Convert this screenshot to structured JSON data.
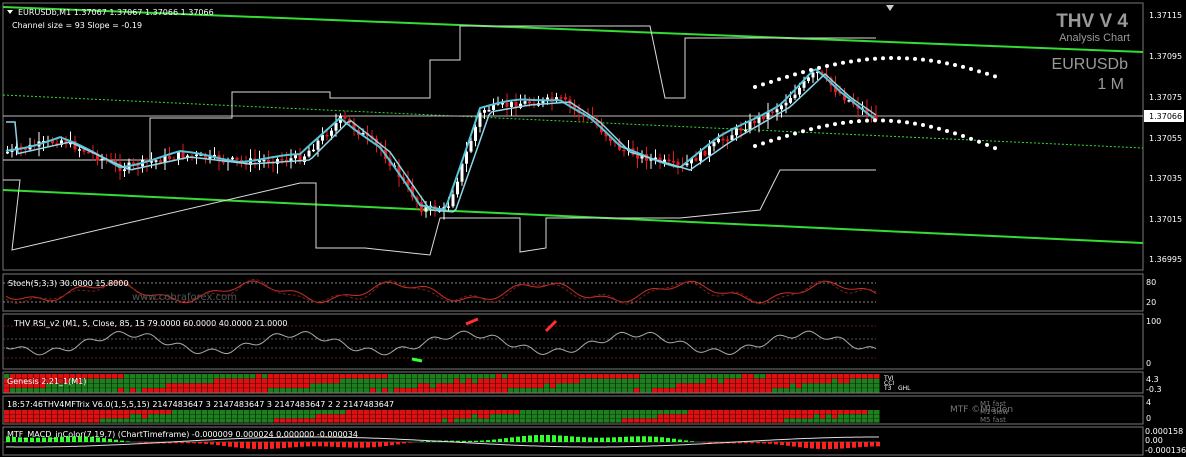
{
  "header": {
    "symbol_line": "EURUSDb,M1  1.37067 1.37067 1.37066 1.37066",
    "channel_line": "Channel size = 93 Slope = -0.19"
  },
  "brand": {
    "title": "THV V 4",
    "subtitle": "Analysis Chart",
    "symbol": "EURUSDb",
    "timeframe": "1 M"
  },
  "price_axis": {
    "ticks": [
      "1.37115",
      "1.37095",
      "1.37075",
      "1.37055",
      "1.37035",
      "1.37015",
      "1.36995"
    ],
    "current": "1.37066"
  },
  "panels": {
    "stoch": {
      "label": "Stoch(5,3,3) 30.0000 15.8000",
      "axis": [
        "80",
        "20"
      ],
      "watermark": "www.cobraforex.com"
    },
    "rsi": {
      "label": "THV RSI_v2   (M1,  5,  Close,  85,  15 79.0000 60.0000 40.0000 21.0000",
      "axis": [
        "100",
        "0"
      ]
    },
    "genesis": {
      "label": "Genesis 2.21_1(M1)",
      "axis": [
        "4.3",
        "-0.3"
      ],
      "tags": [
        "TVI",
        "CCI",
        "T3",
        "GHL"
      ]
    },
    "trix": {
      "label": "18:57:46THV4MFTrix V6.0(1,5,5,15) 2147483647 3 2147483647 3 2147483647 2 2 2147483647",
      "axis": [
        "4",
        "0"
      ],
      "mtf": "MTF ©Mladen",
      "tags": [
        "M1 fast",
        "M1 slow",
        "M5 fast"
      ]
    },
    "macd": {
      "label": "MTF_MACD_inColor(7,19,7) (ChartTimeframe) -0.000009 0.000024 0.000000 -0.000034",
      "axis": [
        "0.000158",
        "0.00",
        "-0.000136"
      ]
    }
  },
  "colors": {
    "bull": "#ffffff",
    "bear": "#e41b1b",
    "channel": "#33dd33",
    "ma": "#57c4d8",
    "stoch": "#c83228",
    "rsi": "#aaaaaa",
    "genesis_green": "#1d7f1d",
    "genesis_red": "#e01010",
    "macd_up": "#33ff33",
    "macd_down": "#ff2020"
  }
}
